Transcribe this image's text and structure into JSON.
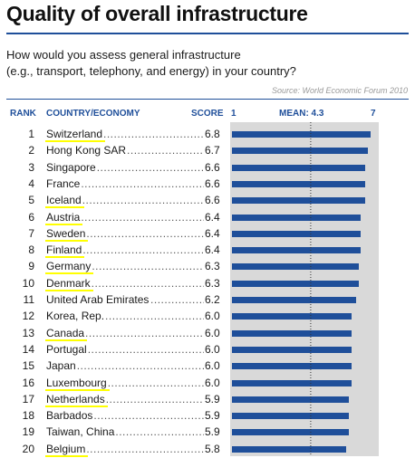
{
  "title": "Quality of overall infrastructure",
  "question_line1": "How would you assess general infrastructure",
  "question_line2": "(e.g., transport, telephony, and energy) in your country?",
  "source": "Source: World Economic Forum 2010",
  "headers": {
    "rank": "RANK",
    "country": "COUNTRY/ECONOMY",
    "score": "SCORE",
    "scale_min": "1",
    "mean": "MEAN: 4.3",
    "scale_max": "7"
  },
  "colors": {
    "bar": "#1f4f9a",
    "highlight": "#ffff00",
    "track": "#d9d9d9",
    "header": "#1f4f9a"
  },
  "chart_data": {
    "type": "bar",
    "orientation": "horizontal",
    "title": "Quality of overall infrastructure",
    "xlim": [
      1,
      7
    ],
    "mean": 4.3,
    "categories": [
      "Switzerland",
      "Hong Kong SAR",
      "Singapore",
      "France",
      "Iceland",
      "Austria",
      "Sweden",
      "Finland",
      "Germany",
      "Denmark",
      "United Arab Emirates",
      "Korea, Rep.",
      "Canada",
      "Portugal",
      "Japan",
      "Luxembourg",
      "Netherlands",
      "Barbados",
      "Taiwan, China",
      "Belgium"
    ],
    "ranks": [
      "1",
      "2",
      "3",
      "4",
      "5",
      "6",
      "7",
      "8",
      "9",
      "10",
      "11",
      "12",
      "13",
      "14",
      "15",
      "16",
      "17",
      "18",
      "19",
      "20"
    ],
    "score_labels": [
      "6.8",
      "6.7",
      "6.6",
      "6.6",
      "6.6",
      "6.4",
      "6.4",
      "6.4",
      "6.3",
      "6.3",
      "6.2",
      "6.0",
      "6.0",
      "6.0",
      "6.0",
      "6.0",
      "5.9",
      "5.9",
      "5.9",
      "5.8"
    ],
    "values": [
      6.8,
      6.7,
      6.6,
      6.6,
      6.6,
      6.4,
      6.4,
      6.4,
      6.3,
      6.3,
      6.2,
      6.0,
      6.0,
      6.0,
      6.0,
      6.0,
      5.9,
      5.9,
      5.9,
      5.8
    ],
    "highlighted": [
      true,
      false,
      false,
      false,
      true,
      true,
      true,
      true,
      true,
      true,
      false,
      false,
      true,
      false,
      false,
      true,
      true,
      false,
      false,
      true
    ]
  }
}
